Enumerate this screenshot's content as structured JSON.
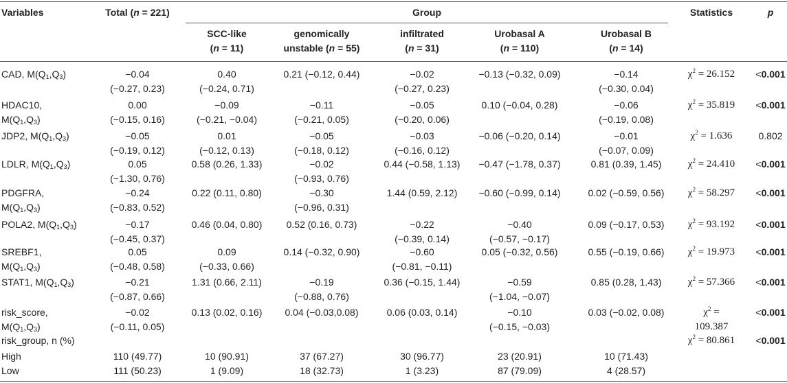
{
  "header": {
    "variables": "Variables",
    "total": "Total (n = 221)",
    "group": "Group",
    "statistics": "Statistics",
    "p": "p",
    "subgroups": [
      {
        "line1": "SCC-like",
        "line2": "(n = 11)"
      },
      {
        "line1": "genomically",
        "line2": "unstable (n = 55)"
      },
      {
        "line1": "infiltrated",
        "line2": "(n = 31)"
      },
      {
        "line1": "Urobasal A",
        "line2": "(n = 110)"
      },
      {
        "line1": "Urobasal B",
        "line2": "(n = 14)"
      }
    ]
  },
  "rows": [
    {
      "var": [
        "CAD, M(Q1,Q3)"
      ],
      "total": [
        "−0.04",
        "(−0.27, 0.23)"
      ],
      "g": [
        [
          "0.40",
          "(−0.24, 0.71)"
        ],
        [
          "0.21 (−0.12, 0.44)"
        ],
        [
          "−0.02",
          "(−0.27, 0.23)"
        ],
        [
          "−0.13 (−0.32, 0.09)"
        ],
        [
          "−0.14",
          "(−0.30, 0.04)"
        ]
      ],
      "stat": [
        "χ2 = 26.152"
      ],
      "p": "<0.001"
    },
    {
      "var": [
        "HDAC10,",
        "M(Q1,Q3)"
      ],
      "total": [
        "0.00",
        "(−0.15, 0.16)"
      ],
      "g": [
        [
          "−0.09",
          "(−0.21, −0.04)"
        ],
        [
          "−0.11",
          "(−0.21, 0.05)"
        ],
        [
          "−0.05",
          "(−0.20, 0.06)"
        ],
        [
          "0.10 (−0.04, 0.28)"
        ],
        [
          "−0.06",
          "(−0.19, 0.08)"
        ]
      ],
      "stat": [
        "χ2 = 35.819"
      ],
      "p": "<0.001"
    },
    {
      "var": [
        "JDP2, M(Q1,Q3)"
      ],
      "total": [
        "−0.05",
        "(−0.19, 0.12)"
      ],
      "g": [
        [
          "0.01",
          "(−0.12, 0.13)"
        ],
        [
          "−0.05",
          "(−0.18, 0.12)"
        ],
        [
          "−0.03",
          "(−0.16, 0.12)"
        ],
        [
          "−0.06 (−0.20, 0.14)"
        ],
        [
          "−0.01",
          "(−0.07, 0.09)"
        ]
      ],
      "stat": [
        "χ2 = 1.636"
      ],
      "p": "0.802"
    },
    {
      "var": [
        "LDLR, M(Q1,Q3)"
      ],
      "total": [
        "0.05",
        "(−1.30, 0.76)"
      ],
      "g": [
        [
          "0.58 (0.26, 1.33)"
        ],
        [
          "−0.02",
          "(−0.93, 0.76)"
        ],
        [
          "0.44 (−0.58, 1.13)"
        ],
        [
          "−0.47 (−1.78, 0.37)"
        ],
        [
          "0.81 (0.39, 1.45)"
        ]
      ],
      "stat": [
        "χ2 = 24.410"
      ],
      "p": "<0.001"
    },
    {
      "var": [
        "PDGFRA,",
        "M(Q1,Q3)"
      ],
      "total": [
        "−0.24",
        "(−0.83, 0.52)"
      ],
      "g": [
        [
          "0.22 (0.11, 0.80)"
        ],
        [
          "−0.30",
          "(−0.96, 0.31)"
        ],
        [
          "1.44 (0.59, 2.12)"
        ],
        [
          "−0.60 (−0.99, 0.14)"
        ],
        [
          "0.02 (−0.59, 0.56)"
        ]
      ],
      "stat": [
        "χ2 = 58.297"
      ],
      "p": "<0.001"
    },
    {
      "var": [
        "POLA2, M(Q1,Q3)"
      ],
      "total": [
        "−0.17",
        "(−0.45, 0.37)"
      ],
      "g": [
        [
          "0.46 (0.04, 0.80)"
        ],
        [
          "0.52 (0.16, 0.73)"
        ],
        [
          "−0.22",
          "(−0.39, 0.14)"
        ],
        [
          "−0.40",
          "(−0.57, −0.17)"
        ],
        [
          "0.09 (−0.17, 0.53)"
        ]
      ],
      "stat": [
        "χ2 = 93.192"
      ],
      "p": "<0.001"
    },
    {
      "var": [
        "SREBF1,",
        "M(Q1,Q3)"
      ],
      "total": [
        "0.05",
        "(−0.48, 0.58)"
      ],
      "g": [
        [
          "0.09",
          "(−0.33, 0.66)"
        ],
        [
          "0.14 (−0.32, 0.90)"
        ],
        [
          "−0.60",
          "(−0.81, −0.11)"
        ],
        [
          "0.05 (−0.32, 0.56)"
        ],
        [
          "0.55 (−0.19, 0.66)"
        ]
      ],
      "stat": [
        "χ2 = 19.973"
      ],
      "p": "<0.001"
    },
    {
      "var": [
        "STAT1, M(Q1,Q3)"
      ],
      "total": [
        "−0.21",
        "(−0.87, 0.66)"
      ],
      "g": [
        [
          "1.31 (0.66, 2.11)"
        ],
        [
          "−0.19",
          "(−0.88, 0.76)"
        ],
        [
          "0.36 (−0.15, 1.44)"
        ],
        [
          "−0.59",
          "(−1.04, −0.07)"
        ],
        [
          "0.85 (0.28, 1.43)"
        ]
      ],
      "stat": [
        "χ2 = 57.366"
      ],
      "p": "<0.001"
    },
    {
      "var": [
        "risk_score,",
        "M(Q1,Q3)"
      ],
      "total": [
        "−0.02",
        "(−0.11, 0.05)"
      ],
      "g": [
        [
          "0.13 (0.02, 0.16)"
        ],
        [
          "0.04 (−0.03,0.08)"
        ],
        [
          "0.06 (0.03, 0.14)"
        ],
        [
          "−0.10",
          "(−0.15, −0.03)"
        ],
        [
          "0.03 (−0.02, 0.08)"
        ]
      ],
      "stat": [
        "χ2 =",
        "109.387"
      ],
      "p": "<0.001"
    },
    {
      "var": [
        "risk_group, n (%)"
      ],
      "total": [],
      "g": [
        [],
        [],
        [],
        [],
        []
      ],
      "stat": [
        "χ2 = 80.861"
      ],
      "p": "<0.001"
    },
    {
      "var": [
        "High"
      ],
      "total": [
        "110 (49.77)"
      ],
      "g": [
        [
          "10 (90.91)"
        ],
        [
          "37 (67.27)"
        ],
        [
          "30 (96.77)"
        ],
        [
          "23 (20.91)"
        ],
        [
          "10 (71.43)"
        ]
      ],
      "stat": [],
      "p": ""
    },
    {
      "var": [
        "Low"
      ],
      "total": [
        "111 (50.23)"
      ],
      "g": [
        [
          "1 (9.09)"
        ],
        [
          "18 (32.73)"
        ],
        [
          "1 (3.23)"
        ],
        [
          "87 (79.09)"
        ],
        [
          "4 (28.57)"
        ]
      ],
      "stat": [],
      "p": ""
    }
  ]
}
